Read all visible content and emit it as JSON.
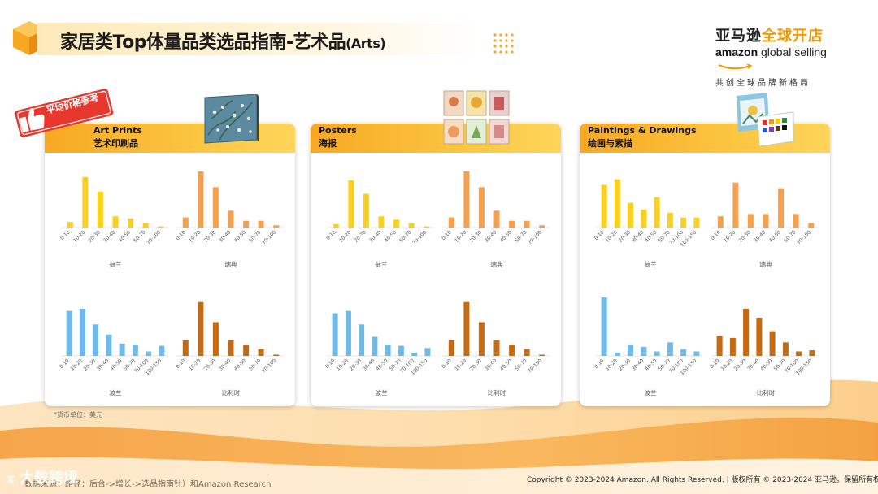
{
  "header": {
    "title": "家居类Top体量品类选品指南-艺术品",
    "title_suffix": "(Arts)"
  },
  "brand": {
    "cn_prefix": "亚马逊",
    "cn_accent": "全球开店",
    "en_amazon": "amazon",
    "en_rest": " global selling",
    "tagline": "共创全球品牌新格局"
  },
  "badge": {
    "label": "平均价格参考"
  },
  "colors": {
    "accent": "#f39800",
    "header_grad_start": "#f7a823",
    "netherlands": "#fbcf1d",
    "sweden": "#f6a04d",
    "poland": "#6ebbea",
    "belgium": "#c46a12"
  },
  "footer": {
    "currency_note": "*货币单位：美元",
    "source_note": "数据来源：路径：后台->增长->选品指南针）和Amazon Research",
    "watermark": "大数跨境",
    "copyright": "Copyright © 2023-2024 Amazon. All Rights Reserved. | 版权所有 © 2023-2024 亚马逊。保留所有权利。"
  },
  "chart_data": [
    {
      "panel_title_en": "Art Prints",
      "panel_title_cn": "艺术印刷品",
      "subcharts": [
        {
          "type": "bar",
          "country": "荷兰",
          "color_key": "netherlands",
          "categories": [
            "0-10",
            "10-20",
            "20-30",
            "30-40",
            "40-50",
            "50-70",
            "70-100"
          ],
          "values": [
            5,
            45,
            32,
            10,
            8,
            4,
            1
          ]
        },
        {
          "type": "bar",
          "country": "瑞典",
          "color_key": "sweden",
          "categories": [
            "0-10",
            "10-20",
            "20-30",
            "30-40",
            "40-50",
            "50-70",
            "70-100"
          ],
          "values": [
            9,
            50,
            36,
            15,
            6,
            6,
            2
          ]
        },
        {
          "type": "bar",
          "country": "波兰",
          "color_key": "poland",
          "categories": [
            "0-10",
            "10-20",
            "20-30",
            "30-40",
            "40-50",
            "50-70",
            "70-100",
            "100-150"
          ],
          "values": [
            40,
            42,
            28,
            19,
            11,
            10,
            4,
            9
          ]
        },
        {
          "type": "bar",
          "country": "比利时",
          "color_key": "belgium",
          "categories": [
            "0-10",
            "10-20",
            "20-30",
            "30-40",
            "40-50",
            "50-70",
            "70-100"
          ],
          "values": [
            14,
            48,
            30,
            14,
            10,
            6,
            1
          ]
        }
      ]
    },
    {
      "panel_title_en": "Posters",
      "panel_title_cn": "海报",
      "subcharts": [
        {
          "type": "bar",
          "country": "荷兰",
          "color_key": "netherlands",
          "categories": [
            "0-10",
            "10-20",
            "20-30",
            "30-40",
            "40-50",
            "50-70",
            "70-100"
          ],
          "values": [
            3,
            42,
            30,
            10,
            7,
            4,
            1
          ]
        },
        {
          "type": "bar",
          "country": "瑞典",
          "color_key": "sweden",
          "categories": [
            "0-10",
            "10-20",
            "20-30",
            "30-40",
            "40-50",
            "50-70",
            "70-100"
          ],
          "values": [
            9,
            50,
            36,
            15,
            6,
            6,
            2
          ]
        },
        {
          "type": "bar",
          "country": "波兰",
          "color_key": "poland",
          "categories": [
            "0-10",
            "10-20",
            "20-30",
            "30-40",
            "40-50",
            "50-70",
            "70-100",
            "100-150"
          ],
          "values": [
            38,
            40,
            28,
            17,
            10,
            9,
            3,
            7
          ]
        },
        {
          "type": "bar",
          "country": "比利时",
          "color_key": "belgium",
          "categories": [
            "0-10",
            "10-20",
            "20-30",
            "30-40",
            "40-50",
            "50-70",
            "70-100"
          ],
          "values": [
            14,
            48,
            30,
            14,
            10,
            6,
            1
          ]
        }
      ]
    },
    {
      "panel_title_en": "Paintings & Drawings",
      "panel_title_cn": "绘画与素描",
      "subcharts": [
        {
          "type": "bar",
          "country": "荷兰",
          "color_key": "netherlands",
          "categories": [
            "0-10",
            "10-20",
            "20-30",
            "30-40",
            "40-50",
            "50-70",
            "70-100",
            "100-150"
          ],
          "values": [
            38,
            43,
            22,
            16,
            27,
            13,
            9,
            9
          ]
        },
        {
          "type": "bar",
          "country": "瑞典",
          "color_key": "sweden",
          "categories": [
            "0-10",
            "10-20",
            "20-30",
            "30-40",
            "40-50",
            "50-70",
            "70-100"
          ],
          "values": [
            10,
            40,
            12,
            12,
            35,
            12,
            4
          ]
        },
        {
          "type": "bar",
          "country": "波兰",
          "color_key": "poland",
          "categories": [
            "0-10",
            "10-20",
            "20-30",
            "30-40",
            "40-50",
            "50-70",
            "70-100",
            "100-150"
          ],
          "values": [
            52,
            3,
            10,
            8,
            4,
            12,
            6,
            4
          ]
        },
        {
          "type": "bar",
          "country": "比利时",
          "color_key": "belgium",
          "categories": [
            "0-10",
            "10-20",
            "20-30",
            "30-40",
            "40-50",
            "50-70",
            "70-100",
            "100-150"
          ],
          "values": [
            18,
            16,
            42,
            34,
            22,
            12,
            4,
            5
          ]
        }
      ]
    }
  ]
}
